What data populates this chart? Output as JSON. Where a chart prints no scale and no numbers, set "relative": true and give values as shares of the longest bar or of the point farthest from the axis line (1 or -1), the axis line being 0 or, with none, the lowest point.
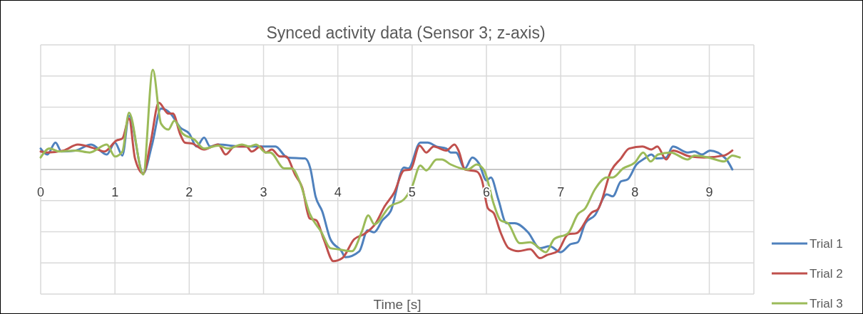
{
  "chart_data": {
    "type": "line",
    "title": "Synced activity data (Sensor 3; z-axis)",
    "xlabel": "Time [s]",
    "relative": true,
    "xlim": [
      0,
      9.6
    ],
    "xticks": [
      0,
      1,
      2,
      3,
      4,
      5,
      6,
      7,
      8,
      9
    ],
    "grid": true,
    "legend": "bottom right",
    "line_style": "solid",
    "series": [
      {
        "name": "Trial 1",
        "color": "#4f81bd",
        "x": [
          0,
          0.09,
          0.2,
          0.28,
          0.47,
          0.68,
          0.89,
          1.0,
          1.1,
          1.19,
          1.38,
          1.5,
          1.62,
          1.75,
          1.88,
          2.0,
          2.1,
          2.2,
          2.28,
          2.39,
          2.71,
          3.16,
          3.32,
          3.56,
          3.63,
          3.7,
          3.79,
          3.9,
          4.05,
          4.1,
          4.29,
          4.4,
          4.49,
          4.6,
          4.71,
          4.89,
          4.95,
          5.11,
          5.21,
          5.33,
          5.46,
          5.52,
          5.59,
          5.71,
          5.81,
          5.9,
          6.0,
          6.06,
          6.16,
          6.27,
          6.38,
          6.56,
          6.72,
          6.85,
          7.0,
          7.13,
          7.23,
          7.33,
          7.46,
          7.62,
          7.7,
          7.81,
          7.9,
          8.02,
          8.13,
          8.22,
          8.29,
          8.42,
          8.51,
          8.71,
          8.8,
          8.9,
          9.01,
          9.22,
          9.31
        ],
        "values": [
          0.21,
          0.15,
          0.27,
          0.18,
          0.19,
          0.25,
          0.15,
          0.27,
          0.14,
          0.54,
          -0.04,
          0.25,
          0.61,
          0.56,
          0.42,
          0.36,
          0.23,
          0.32,
          0.23,
          0.25,
          0.23,
          0.23,
          0.12,
          0.11,
          0.01,
          -0.27,
          -0.42,
          -0.7,
          -0.82,
          -0.88,
          -0.82,
          -0.61,
          -0.63,
          -0.51,
          -0.42,
          0.02,
          0.01,
          0.27,
          0.27,
          0.23,
          0.21,
          0.17,
          0.17,
          0.01,
          0.12,
          0.06,
          -0.11,
          -0.08,
          -0.3,
          -0.54,
          -0.54,
          -0.63,
          -0.79,
          -0.77,
          -0.83,
          -0.75,
          -0.73,
          -0.54,
          -0.46,
          -0.25,
          -0.27,
          -0.12,
          -0.1,
          0.05,
          0.11,
          0.15,
          0.11,
          0.12,
          0.23,
          0.17,
          0.18,
          0.15,
          0.19,
          0.11,
          0
        ]
      },
      {
        "name": "Trial 2",
        "color": "#c0504d",
        "x": [
          0,
          0.09,
          0.31,
          0.5,
          0.73,
          0.86,
          1.02,
          1.1,
          1.19,
          1.27,
          1.38,
          1.48,
          1.59,
          1.72,
          1.78,
          1.88,
          1.94,
          2.04,
          2.2,
          2.39,
          2.49,
          2.61,
          2.77,
          2.84,
          2.96,
          3.03,
          3.11,
          3.22,
          3.3,
          3.43,
          3.52,
          3.62,
          3.71,
          3.81,
          3.94,
          4.06,
          4.22,
          4.35,
          4.51,
          4.63,
          4.76,
          4.89,
          4.98,
          5.1,
          5.19,
          5.29,
          5.46,
          5.57,
          5.63,
          5.71,
          5.87,
          5.94,
          6.02,
          6.1,
          6.19,
          6.3,
          6.43,
          6.59,
          6.72,
          6.81,
          6.96,
          7.1,
          7.21,
          7.42,
          7.5,
          7.68,
          7.81,
          7.92,
          8.1,
          8.22,
          8.3,
          8.42,
          8.51,
          8.74,
          8.93,
          9.2,
          9.31
        ],
        "values": [
          0.18,
          0.17,
          0.19,
          0.25,
          0.21,
          0.18,
          0.29,
          0.31,
          0.51,
          0.11,
          -0.04,
          0.27,
          0.67,
          0.56,
          0.56,
          0.35,
          0.27,
          0.26,
          0.2,
          0.25,
          0.15,
          0.23,
          0.23,
          0.18,
          0.23,
          0.17,
          0.2,
          0.13,
          0.13,
          -0.06,
          -0.18,
          -0.49,
          -0.51,
          -0.7,
          -0.92,
          -0.89,
          -0.7,
          -0.65,
          -0.54,
          -0.37,
          -0.23,
          -0.01,
          0,
          0.24,
          0.17,
          0.23,
          0.19,
          0.25,
          0.18,
          0,
          -0.02,
          -0.11,
          -0.39,
          -0.44,
          -0.63,
          -0.79,
          -0.82,
          -0.8,
          -0.89,
          -0.86,
          -0.82,
          -0.65,
          -0.64,
          -0.43,
          -0.4,
          -0.01,
          0.11,
          0.21,
          0.23,
          0.2,
          0.23,
          0.1,
          0.19,
          0.13,
          0.12,
          0.14,
          0.19
        ]
      },
      {
        "name": "Trial 3",
        "color": "#9bbb59",
        "x": [
          0,
          0.12,
          0.25,
          0.47,
          0.66,
          0.89,
          1.0,
          1.1,
          1.19,
          1.38,
          1.51,
          1.62,
          1.72,
          1.8,
          1.91,
          2.07,
          2.2,
          2.39,
          2.52,
          2.71,
          2.81,
          2.9,
          3.03,
          3.09,
          3.28,
          3.38,
          3.49,
          3.62,
          3.78,
          3.9,
          4.0,
          4.19,
          4.32,
          4.41,
          4.49,
          4.7,
          4.89,
          5.0,
          5.11,
          5.19,
          5.33,
          5.4,
          5.52,
          5.75,
          5.87,
          5.97,
          6.1,
          6.19,
          6.29,
          6.45,
          6.59,
          6.8,
          6.91,
          7.1,
          7.23,
          7.33,
          7.46,
          7.62,
          7.7,
          7.84,
          8.0,
          8.11,
          8.21,
          8.31,
          8.48,
          8.71,
          8.8,
          8.99,
          9.2,
          9.31,
          9.41
        ],
        "values": [
          0.12,
          0.21,
          0.18,
          0.19,
          0.17,
          0.25,
          0.13,
          0.18,
          0.57,
          -0.05,
          1.0,
          0.46,
          0.4,
          0.49,
          0.36,
          0.3,
          0.21,
          0.24,
          0.21,
          0.25,
          0.23,
          0.25,
          0.17,
          0.17,
          0.01,
          0.01,
          -0.13,
          -0.44,
          -0.63,
          -0.79,
          -0.8,
          -0.82,
          -0.63,
          -0.46,
          -0.55,
          -0.37,
          -0.3,
          -0.17,
          0.04,
          -0.01,
          0.1,
          0.1,
          0.05,
          0,
          0.05,
          -0.01,
          -0.35,
          -0.51,
          -0.54,
          -0.74,
          -0.73,
          -0.83,
          -0.7,
          -0.64,
          -0.45,
          -0.39,
          -0.2,
          -0.08,
          -0.08,
          0.01,
          0.07,
          0.17,
          0.08,
          0.15,
          0.17,
          0.1,
          0.14,
          0.12,
          0.08,
          0.14,
          0.12
        ]
      }
    ]
  }
}
